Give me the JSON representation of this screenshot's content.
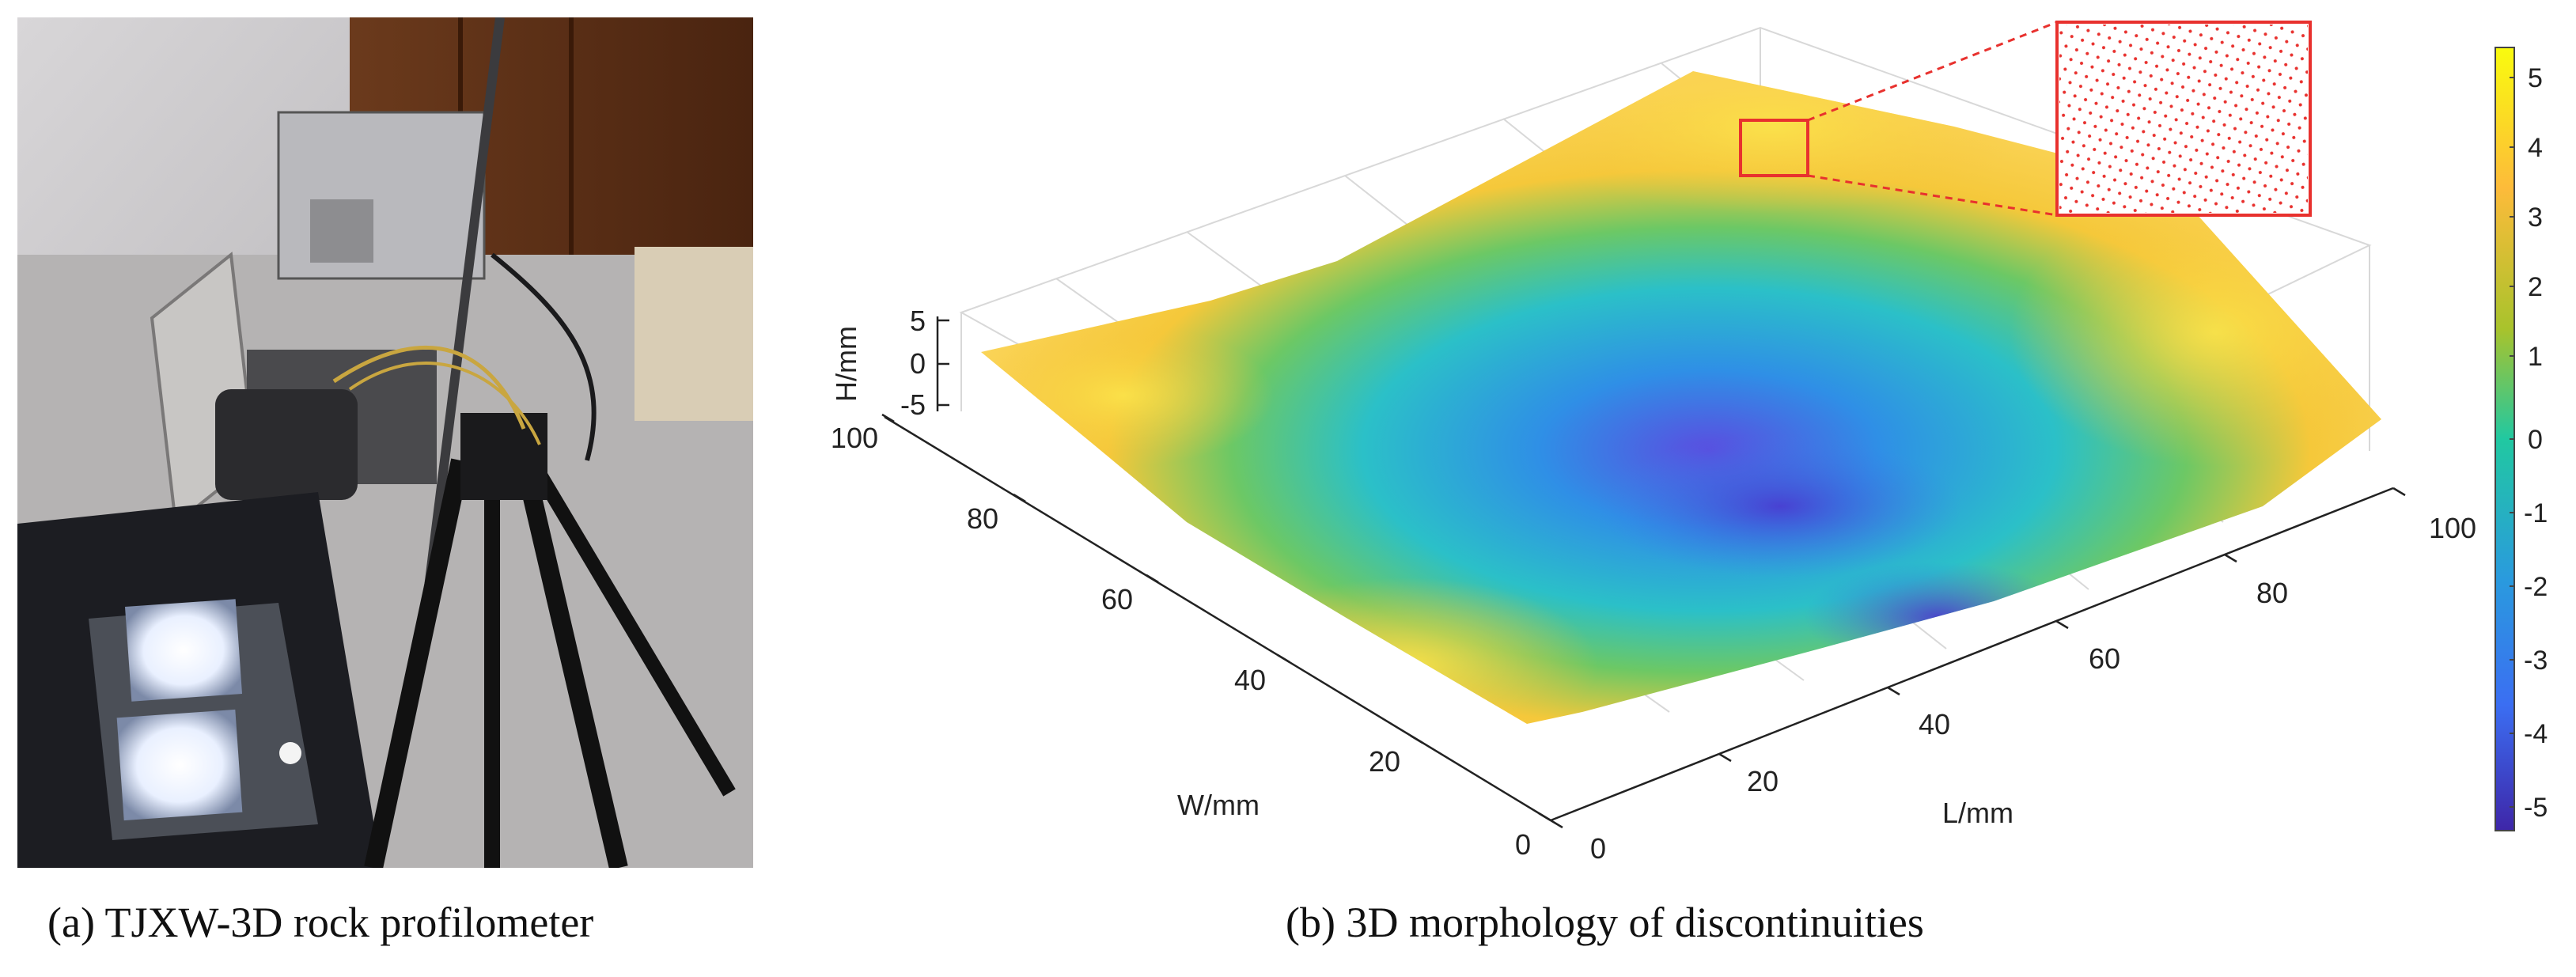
{
  "captions": {
    "a": "(a) TJXW-3D rock profilometer",
    "b": "(b) 3D morphology of discontinuities"
  },
  "chart_data": {
    "type": "surface",
    "xlabel": "L/mm",
    "ylabel": "W/mm",
    "zlabel": "H/mm",
    "x_ticks": [
      "0",
      "20",
      "40",
      "60",
      "80",
      "100"
    ],
    "y_ticks": [
      "0",
      "20",
      "40",
      "60",
      "80",
      "100"
    ],
    "z_ticks": [
      "5",
      "0",
      "-5"
    ],
    "xlim": [
      0,
      100
    ],
    "ylim": [
      0,
      100
    ],
    "zlim": [
      -5,
      5
    ],
    "colorbar": {
      "ticks": [
        "5",
        "4",
        "3",
        "2",
        "1",
        "0",
        "-1",
        "-2",
        "-3",
        "-4",
        "-5"
      ],
      "range": [
        -5.4,
        5.4
      ]
    },
    "colors": {
      "max": "#f9fb0e",
      "high": "#fdbb3a",
      "mid": "#21c8a1",
      "low": "#2a9ade",
      "min": "#3e26a8",
      "zoom_box": "#e8312e"
    }
  }
}
